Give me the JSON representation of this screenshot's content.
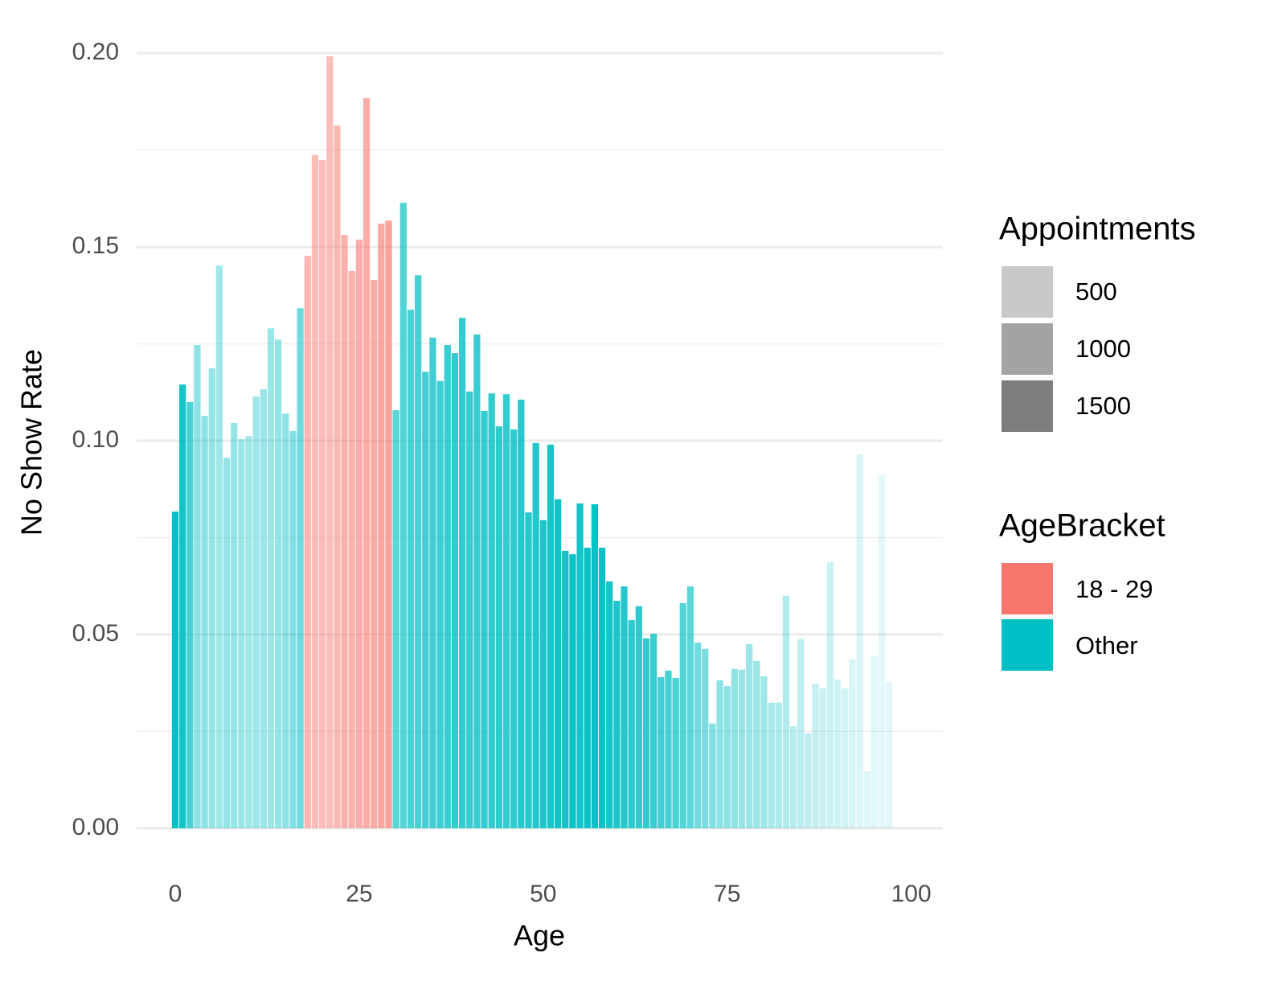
{
  "chart_data": {
    "type": "bar",
    "x_label": "Age",
    "y_label": "No Show Rate",
    "x": [
      0,
      1,
      2,
      3,
      4,
      5,
      6,
      7,
      8,
      9,
      10,
      11,
      12,
      13,
      14,
      15,
      16,
      17,
      18,
      19,
      20,
      21,
      22,
      23,
      24,
      25,
      26,
      27,
      28,
      29,
      30,
      31,
      32,
      33,
      34,
      35,
      36,
      37,
      38,
      39,
      40,
      41,
      42,
      43,
      44,
      45,
      46,
      47,
      48,
      49,
      50,
      51,
      52,
      53,
      54,
      55,
      56,
      57,
      58,
      59,
      60,
      61,
      62,
      63,
      64,
      65,
      66,
      67,
      68,
      69,
      70,
      71,
      72,
      73,
      74,
      75,
      76,
      77,
      78,
      79,
      80,
      81,
      82,
      83,
      84,
      85,
      86,
      87,
      88,
      89,
      90,
      91,
      92,
      93,
      94,
      95,
      96,
      97
    ],
    "series": [
      {
        "name": "18 - 29",
        "color": "#F8766D",
        "values": [
          null,
          null,
          null,
          null,
          null,
          null,
          null,
          null,
          null,
          null,
          null,
          null,
          null,
          null,
          null,
          null,
          null,
          null,
          0.1477,
          0.1737,
          0.1724,
          0.1992,
          0.1813,
          0.1531,
          0.1438,
          0.1519,
          0.1884,
          0.1415,
          0.156,
          0.1568,
          null,
          null,
          null,
          null,
          null,
          null,
          null,
          null,
          null,
          null,
          null,
          null,
          null,
          null,
          null,
          null,
          null,
          null,
          null,
          null,
          null,
          null,
          null,
          null,
          null,
          null,
          null,
          null,
          null,
          null,
          null,
          null,
          null,
          null,
          null,
          null,
          null,
          null,
          null,
          null,
          null,
          null,
          null,
          null,
          null,
          null,
          null,
          null,
          null,
          null,
          null,
          null,
          null,
          null,
          null,
          null,
          null,
          null,
          null,
          null,
          null,
          null,
          null,
          null,
          null,
          null,
          null,
          null
        ]
      },
      {
        "name": "Other",
        "color": "#00BFC4",
        "values": [
          0.0817,
          0.1145,
          0.11,
          0.1247,
          0.1064,
          0.1187,
          0.1452,
          0.0956,
          0.1046,
          0.1004,
          0.1012,
          0.1114,
          0.1133,
          0.129,
          0.1261,
          0.107,
          0.1025,
          0.1342,
          null,
          null,
          null,
          null,
          null,
          null,
          null,
          null,
          null,
          null,
          null,
          null,
          0.1079,
          0.1614,
          0.1338,
          0.1427,
          0.1178,
          0.1266,
          0.1154,
          0.1247,
          0.1226,
          0.1317,
          0.1127,
          0.1274,
          0.1077,
          0.1122,
          0.1037,
          0.112,
          0.1029,
          0.1106,
          0.0815,
          0.0994,
          0.0795,
          0.099,
          0.0849,
          0.0716,
          0.0707,
          0.0838,
          0.0724,
          0.0836,
          0.0724,
          0.0637,
          0.0587,
          0.0624,
          0.0537,
          0.0573,
          0.049,
          0.0502,
          0.039,
          0.0407,
          0.0388,
          0.0581,
          0.0624,
          0.0479,
          0.0463,
          0.027,
          0.0382,
          0.0367,
          0.0411,
          0.0409,
          0.0475,
          0.0432,
          0.0392,
          0.0324,
          0.0324,
          0.06,
          0.0263,
          0.0488,
          0.0245,
          0.0373,
          0.0361,
          0.0687,
          0.0384,
          0.0361,
          0.0436,
          0.0965,
          0.0147,
          0.0444,
          0.0911,
          0.0378
        ]
      }
    ],
    "appointments": [
      2500,
      2300,
      1700,
      1000,
      1000,
      900,
      800,
      900,
      900,
      850,
      800,
      800,
      850,
      850,
      900,
      1000,
      1100,
      1300,
      1200,
      1100,
      1100,
      1100,
      1200,
      1300,
      1300,
      1350,
      1400,
      1450,
      1500,
      1600,
      1500,
      1600,
      1700,
      1750,
      1800,
      1800,
      1850,
      1900,
      1950,
      1950,
      1900,
      1900,
      1950,
      2000,
      2000,
      1950,
      2000,
      2100,
      2100,
      2150,
      2200,
      2250,
      2350,
      2350,
      2400,
      2300,
      2400,
      2450,
      2400,
      2300,
      2200,
      2100,
      2050,
      2000,
      2000,
      1900,
      1800,
      1750,
      1700,
      1600,
      1500,
      1300,
      1200,
      1100,
      1000,
      1000,
      950,
      900,
      850,
      850,
      800,
      700,
      650,
      600,
      550,
      500,
      450,
      400,
      350,
      320,
      280,
      250,
      200,
      150,
      120,
      100,
      60,
      40
    ],
    "xlim": [
      -5.24,
      104.3
    ],
    "ylim": [
      -0.0075,
      0.2075
    ],
    "xticks": [
      0,
      25,
      50,
      75,
      100
    ],
    "yticks": [
      {
        "value": 0,
        "label": "0.00"
      },
      {
        "value": 0.05,
        "label": "0.05"
      },
      {
        "value": 0.1,
        "label": "0.10"
      },
      {
        "value": 0.15,
        "label": "0.15"
      },
      {
        "value": 0.2,
        "label": "0.20"
      }
    ],
    "y_minor_ticks": [
      0.025,
      0.075,
      0.125,
      0.175
    ],
    "grid": true,
    "alpha_legend": {
      "title": "Appointments",
      "breaks": [
        500,
        1000,
        1500
      ],
      "color": "#333333"
    },
    "fill_legend_title": "AgeBracket"
  }
}
